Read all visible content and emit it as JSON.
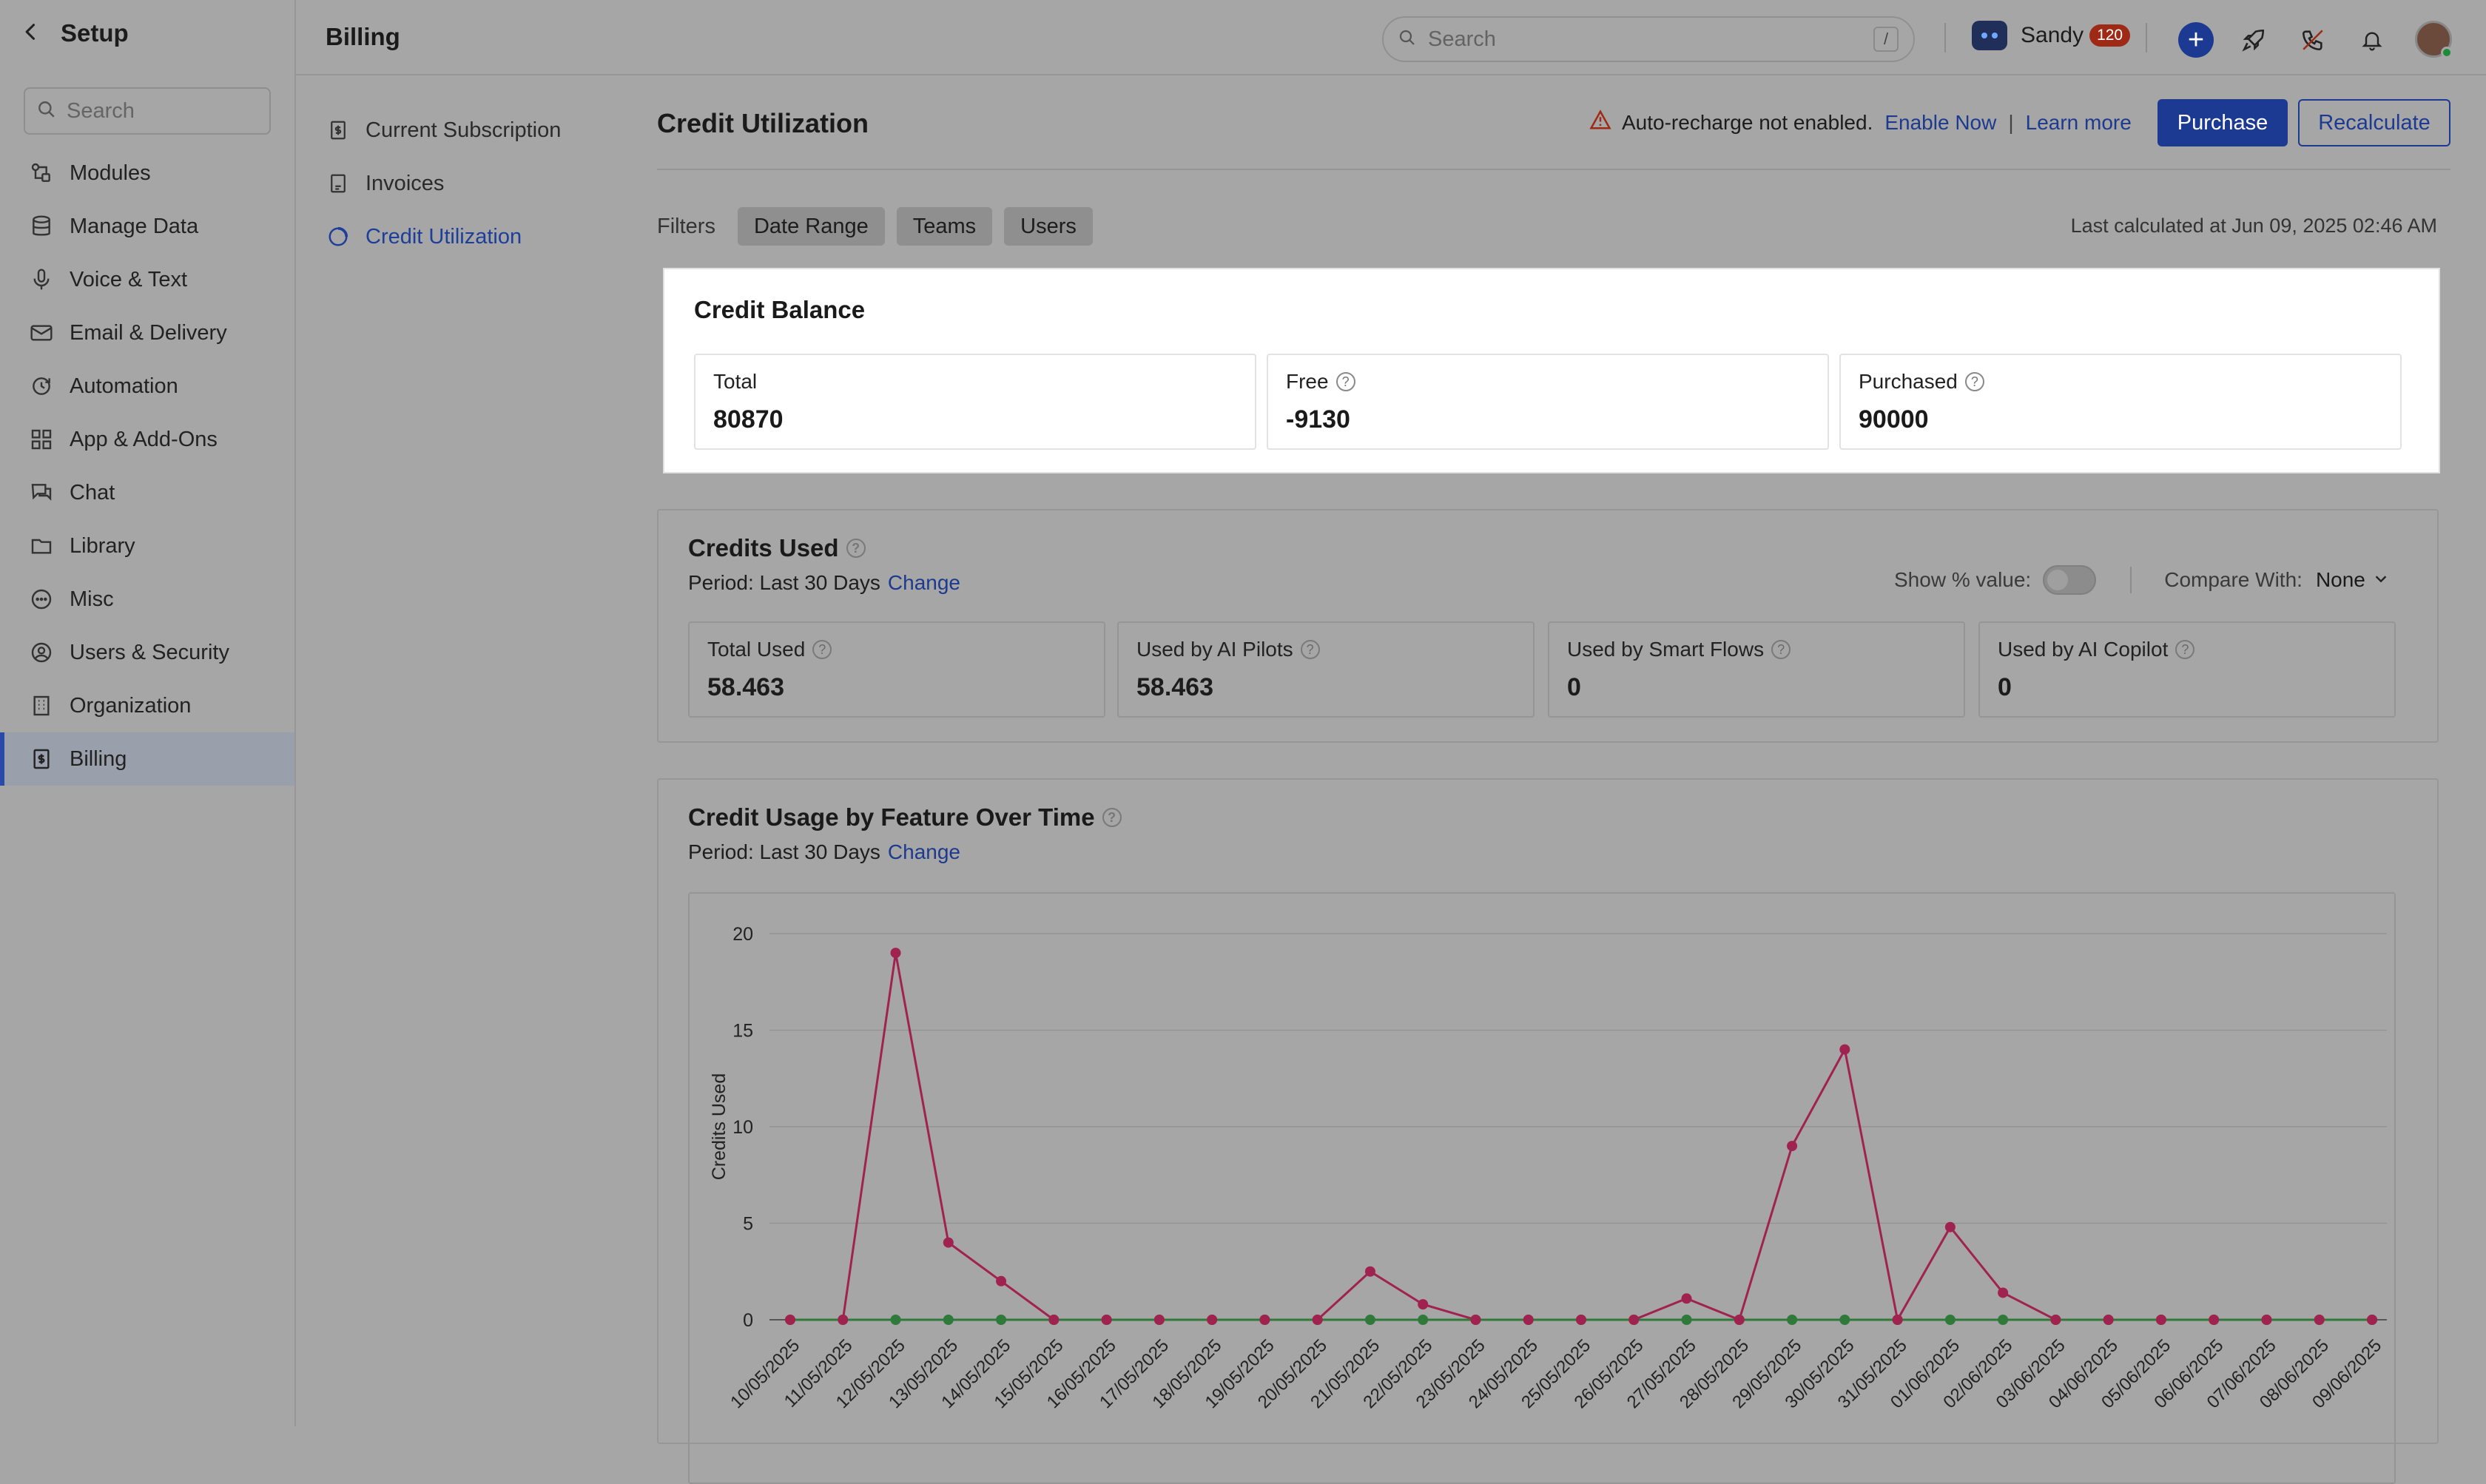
{
  "setup": {
    "title": "Setup",
    "search_placeholder": "Search",
    "items": [
      {
        "label": "Modules",
        "icon": "modules-icon"
      },
      {
        "label": "Manage Data",
        "icon": "database-icon"
      },
      {
        "label": "Voice & Text",
        "icon": "microphone-icon"
      },
      {
        "label": "Email & Delivery",
        "icon": "mail-icon"
      },
      {
        "label": "Automation",
        "icon": "automation-icon"
      },
      {
        "label": "App & Add-Ons",
        "icon": "apps-grid-icon"
      },
      {
        "label": "Chat",
        "icon": "chat-icon"
      },
      {
        "label": "Library",
        "icon": "folder-icon"
      },
      {
        "label": "Misc",
        "icon": "more-circle-icon"
      },
      {
        "label": "Users & Security",
        "icon": "user-circle-icon"
      },
      {
        "label": "Organization",
        "icon": "building-icon"
      },
      {
        "label": "Billing",
        "icon": "billing-icon",
        "active": true
      }
    ]
  },
  "header": {
    "title": "Billing",
    "search_placeholder": "Search",
    "search_shortcut": "/",
    "user_name": "Sandy",
    "user_badge": "120"
  },
  "billing_nav": [
    {
      "label": "Current Subscription",
      "icon": "subscription-icon"
    },
    {
      "label": "Invoices",
      "icon": "invoice-icon"
    },
    {
      "label": "Credit Utilization",
      "icon": "credit-icon",
      "active": true
    }
  ],
  "main": {
    "title": "Credit Utilization",
    "alert_text": "Auto-recharge not enabled.",
    "enable_now": "Enable Now",
    "separator": "|",
    "learn_more": "Learn more",
    "purchase_label": "Purchase",
    "recalculate_label": "Recalculate",
    "filters_label": "Filters",
    "filters": [
      "Date Range",
      "Teams",
      "Users"
    ],
    "last_calculated": "Last calculated at Jun 09, 2025 02:46 AM"
  },
  "credit_balance": {
    "title": "Credit Balance",
    "stats": [
      {
        "label": "Total",
        "value": "80870",
        "help": false
      },
      {
        "label": "Free",
        "value": "-9130",
        "help": true
      },
      {
        "label": "Purchased",
        "value": "90000",
        "help": true
      }
    ]
  },
  "credits_used": {
    "title": "Credits Used",
    "period_label": "Period: Last 30 Days",
    "change_label": "Change",
    "show_percent_label": "Show % value:",
    "compare_label": "Compare With:",
    "compare_value": "None",
    "stats": [
      {
        "label": "Total Used",
        "value": "58.463"
      },
      {
        "label": "Used by AI Pilots",
        "value": "58.463"
      },
      {
        "label": "Used by Smart Flows",
        "value": "0"
      },
      {
        "label": "Used by AI Copilot",
        "value": "0"
      }
    ]
  },
  "usage_chart": {
    "title": "Credit Usage by Feature Over Time",
    "period_label": "Period: Last 30 Days",
    "change_label": "Change"
  },
  "chart_data": {
    "type": "line",
    "title": "",
    "xlabel": "",
    "ylabel": "Credits Used",
    "ylim": [
      0,
      20
    ],
    "yticks": [
      0,
      5,
      10,
      15,
      20
    ],
    "grid": true,
    "x": [
      "10/05/2025",
      "11/05/2025",
      "12/05/2025",
      "13/05/2025",
      "14/05/2025",
      "15/05/2025",
      "16/05/2025",
      "17/05/2025",
      "18/05/2025",
      "19/05/2025",
      "20/05/2025",
      "21/05/2025",
      "22/05/2025",
      "23/05/2025",
      "24/05/2025",
      "25/05/2025",
      "26/05/2025",
      "27/05/2025",
      "28/05/2025",
      "29/05/2025",
      "30/05/2025",
      "31/05/2025",
      "01/06/2025",
      "02/06/2025",
      "03/06/2025",
      "04/06/2025",
      "05/06/2025",
      "06/06/2025",
      "07/06/2025",
      "08/06/2025",
      "09/06/2025"
    ],
    "series": [
      {
        "color": "#a0224f",
        "values": [
          0,
          0,
          19,
          4,
          2,
          0,
          0,
          0,
          0,
          0,
          0,
          2.5,
          0.8,
          0,
          0,
          0,
          0,
          1.1,
          0,
          9,
          14,
          0,
          4.8,
          1.4,
          0,
          0,
          0,
          0,
          0,
          0,
          0
        ]
      },
      {
        "color": "#2f7a3a",
        "values": [
          0,
          0,
          0,
          0,
          0,
          0,
          0,
          0,
          0,
          0,
          0,
          0,
          0,
          0,
          0,
          0,
          0,
          0,
          0,
          0,
          0,
          0,
          0,
          0,
          0,
          0,
          0,
          0,
          0,
          0,
          0
        ]
      }
    ]
  }
}
